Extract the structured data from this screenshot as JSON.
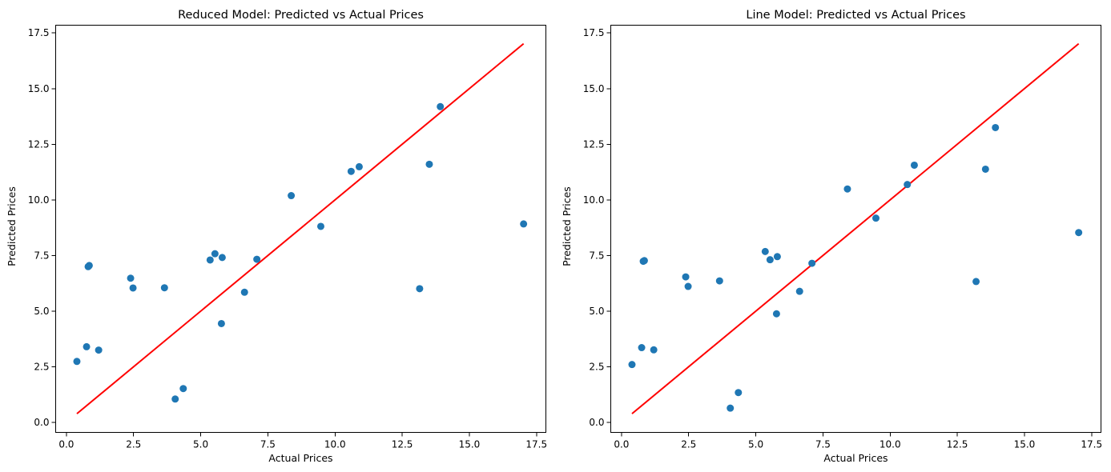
{
  "chart_data": [
    {
      "type": "scatter",
      "title": "Reduced Model: Predicted vs Actual Prices",
      "xlabel": "Actual Prices",
      "ylabel": "Predicted Prices",
      "xlim": [
        -0.4,
        17.85
      ],
      "ylim": [
        -0.45,
        17.85
      ],
      "xticks": [
        "0.0",
        "2.5",
        "5.0",
        "7.5",
        "10.0",
        "12.5",
        "15.0",
        "17.5"
      ],
      "yticks": [
        "0.0",
        "2.5",
        "5.0",
        "7.5",
        "10.0",
        "12.5",
        "15.0",
        "17.5"
      ],
      "grid": false,
      "point_color": "#1f77b4",
      "line_color": "#ff0000",
      "reference_line": {
        "x": [
          0.39,
          17.02
        ],
        "y": [
          0.39,
          17.02
        ]
      },
      "points": [
        {
          "x": 0.39,
          "y": 2.74
        },
        {
          "x": 0.75,
          "y": 3.4
        },
        {
          "x": 0.81,
          "y": 7.0
        },
        {
          "x": 0.85,
          "y": 7.05
        },
        {
          "x": 1.2,
          "y": 3.25
        },
        {
          "x": 2.39,
          "y": 6.48
        },
        {
          "x": 2.48,
          "y": 6.04
        },
        {
          "x": 3.65,
          "y": 6.05
        },
        {
          "x": 4.05,
          "y": 1.05
        },
        {
          "x": 4.35,
          "y": 1.52
        },
        {
          "x": 5.35,
          "y": 7.3
        },
        {
          "x": 5.53,
          "y": 7.58
        },
        {
          "x": 5.77,
          "y": 4.44
        },
        {
          "x": 5.8,
          "y": 7.41
        },
        {
          "x": 6.63,
          "y": 5.85
        },
        {
          "x": 7.09,
          "y": 7.33
        },
        {
          "x": 8.37,
          "y": 10.19
        },
        {
          "x": 9.47,
          "y": 8.81
        },
        {
          "x": 10.6,
          "y": 11.28
        },
        {
          "x": 10.9,
          "y": 11.49
        },
        {
          "x": 13.15,
          "y": 6.01
        },
        {
          "x": 13.51,
          "y": 11.6
        },
        {
          "x": 13.92,
          "y": 14.19
        },
        {
          "x": 17.02,
          "y": 8.92
        }
      ]
    },
    {
      "type": "scatter",
      "title": "Line Model: Predicted vs Actual Prices",
      "xlabel": "Actual Prices",
      "ylabel": "Predicted Prices",
      "xlim": [
        -0.4,
        17.85
      ],
      "ylim": [
        -0.45,
        17.85
      ],
      "xticks": [
        "0.0",
        "2.5",
        "5.0",
        "7.5",
        "10.0",
        "12.5",
        "15.0",
        "17.5"
      ],
      "yticks": [
        "0.0",
        "2.5",
        "5.0",
        "7.5",
        "10.0",
        "12.5",
        "15.0",
        "17.5"
      ],
      "grid": false,
      "point_color": "#1f77b4",
      "line_color": "#ff0000",
      "reference_line": {
        "x": [
          0.39,
          17.02
        ],
        "y": [
          0.39,
          17.02
        ]
      },
      "points": [
        {
          "x": 0.39,
          "y": 2.6
        },
        {
          "x": 0.75,
          "y": 3.36
        },
        {
          "x": 0.81,
          "y": 7.24
        },
        {
          "x": 0.85,
          "y": 7.27
        },
        {
          "x": 1.2,
          "y": 3.26
        },
        {
          "x": 2.39,
          "y": 6.54
        },
        {
          "x": 2.48,
          "y": 6.11
        },
        {
          "x": 3.65,
          "y": 6.36
        },
        {
          "x": 4.05,
          "y": 0.64
        },
        {
          "x": 4.35,
          "y": 1.34
        },
        {
          "x": 5.35,
          "y": 7.68
        },
        {
          "x": 5.53,
          "y": 7.31
        },
        {
          "x": 5.77,
          "y": 4.88
        },
        {
          "x": 5.8,
          "y": 7.45
        },
        {
          "x": 6.63,
          "y": 5.89
        },
        {
          "x": 7.09,
          "y": 7.15
        },
        {
          "x": 8.41,
          "y": 10.49
        },
        {
          "x": 9.47,
          "y": 9.18
        },
        {
          "x": 10.64,
          "y": 10.69
        },
        {
          "x": 10.9,
          "y": 11.56
        },
        {
          "x": 13.2,
          "y": 6.33
        },
        {
          "x": 13.55,
          "y": 11.38
        },
        {
          "x": 13.92,
          "y": 13.25
        },
        {
          "x": 17.02,
          "y": 8.53
        }
      ]
    }
  ]
}
